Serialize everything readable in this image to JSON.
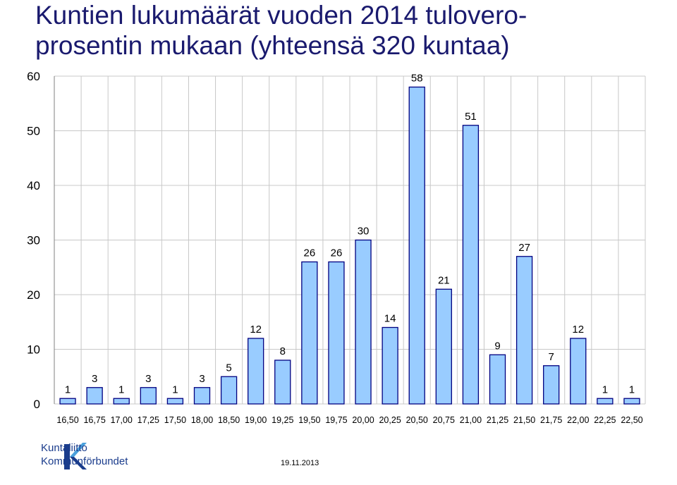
{
  "title": "Kuntien lukumäärät vuoden 2014 tulovero-\nprosentin mukaan (yhteensä 320 kuntaa)",
  "chart_data": {
    "type": "bar",
    "categories": [
      "16,50",
      "16,75",
      "17,00",
      "17,25",
      "17,50",
      "18,00",
      "18,50",
      "19,00",
      "19,25",
      "19,50",
      "19,75",
      "20,00",
      "20,25",
      "20,50",
      "20,75",
      "21,00",
      "21,25",
      "21,50",
      "21,75",
      "22,00",
      "22,25",
      "22,50"
    ],
    "values": [
      1,
      3,
      1,
      3,
      1,
      3,
      5,
      12,
      8,
      26,
      26,
      30,
      14,
      58,
      21,
      51,
      9,
      27,
      7,
      12,
      1,
      1
    ],
    "ylim": [
      0,
      60
    ],
    "yticks": [
      0,
      10,
      20,
      30,
      40,
      50,
      60
    ],
    "grid": true,
    "bar_fill": "#99ccff",
    "bar_stroke": "#000080",
    "grid_color": "#c8c8c8"
  },
  "logo": {
    "line1": "Kuntaliitto",
    "line2": "Kommunförbundet",
    "color": "#1a3c8c"
  },
  "date": "19.11.2013"
}
